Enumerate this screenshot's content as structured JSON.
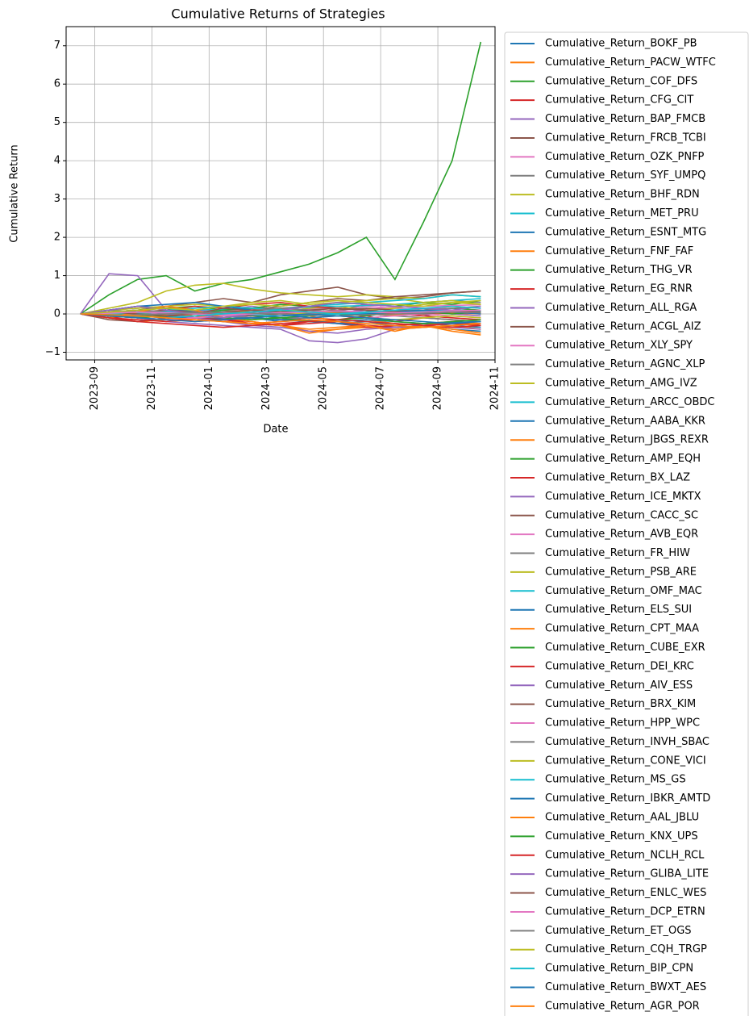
{
  "chart_data": {
    "type": "line",
    "title": "Cumulative Returns of Strategies",
    "x_label": "Date",
    "y_label": "Cumulative Return",
    "x": [
      "2023-08",
      "2023-09",
      "2023-10",
      "2023-11",
      "2023-12",
      "2024-01",
      "2024-02",
      "2024-03",
      "2024-04",
      "2024-05",
      "2024-06",
      "2024-07",
      "2024-08",
      "2024-09",
      "2024-10"
    ],
    "xlim": [
      "2023-08",
      "2024-11"
    ],
    "xticks": [
      "2023-09",
      "2023-11",
      "2024-01",
      "2024-03",
      "2024-05",
      "2024-07",
      "2024-09",
      "2024-11"
    ],
    "ylim": [
      -1.2,
      7.5
    ],
    "yticks": [
      {
        "value": -1,
        "label": "−1"
      },
      0,
      1,
      2,
      3,
      4,
      5,
      6,
      7
    ],
    "grid": true,
    "legend": "outside right",
    "series": [
      {
        "name": "Cumulative_Return_BOKF_PB",
        "color": "#1f77b4",
        "values": [
          0,
          -0.05,
          -0.1,
          -0.15,
          -0.1,
          -0.05,
          -0.1,
          -0.2,
          -0.15,
          -0.25,
          -0.2,
          -0.3,
          -0.25,
          -0.3,
          -0.35
        ]
      },
      {
        "name": "Cumulative_Return_PACW_WTFC",
        "color": "#ff7f0e",
        "values": [
          0,
          0.05,
          -0.1,
          -0.2,
          -0.15,
          -0.2,
          -0.25,
          -0.3,
          -0.45,
          -0.4,
          -0.35,
          -0.4,
          -0.3,
          -0.45,
          -0.55
        ]
      },
      {
        "name": "Cumulative_Return_COF_DFS",
        "color": "#2ca02c",
        "values": [
          0,
          0.5,
          0.9,
          1.0,
          0.6,
          0.8,
          0.9,
          1.1,
          1.3,
          1.6,
          2.0,
          0.9,
          2.4,
          4.0,
          7.1
        ]
      },
      {
        "name": "Cumulative_Return_CFG_CIT",
        "color": "#d62728",
        "values": [
          0,
          -0.1,
          -0.05,
          -0.1,
          -0.2,
          -0.15,
          -0.25,
          -0.2,
          -0.1,
          -0.15,
          -0.05,
          -0.2,
          -0.1,
          -0.15,
          -0.2
        ]
      },
      {
        "name": "Cumulative_Return_BAP_FMCB",
        "color": "#9467bd",
        "values": [
          0,
          1.05,
          1.0,
          0.1,
          0.05,
          0.1,
          0.2,
          0.1,
          0.0,
          0.05,
          0.1,
          0.0,
          -0.05,
          0.1,
          0.05
        ]
      },
      {
        "name": "Cumulative_Return_FRCB_TCBI",
        "color": "#8c564b",
        "values": [
          0,
          -0.1,
          0.1,
          0.2,
          0.3,
          0.4,
          0.3,
          0.5,
          0.6,
          0.7,
          0.5,
          0.4,
          0.45,
          0.55,
          0.6
        ]
      },
      {
        "name": "Cumulative_Return_OZK_PNFP",
        "color": "#e377c2",
        "values": [
          0,
          0.05,
          0.1,
          0.0,
          0.05,
          0.1,
          0.15,
          0.05,
          0.0,
          0.1,
          0.2,
          0.15,
          0.1,
          0.2,
          0.15
        ]
      },
      {
        "name": "Cumulative_Return_SYF_UMPQ",
        "color": "#7f7f7f",
        "values": [
          0,
          0.1,
          0.05,
          -0.05,
          0.0,
          0.1,
          0.05,
          0.15,
          0.2,
          0.1,
          0.25,
          0.2,
          0.3,
          0.35,
          0.3
        ]
      },
      {
        "name": "Cumulative_Return_BHF_RDN",
        "color": "#bcbd22",
        "values": [
          0,
          0.15,
          0.3,
          0.6,
          0.75,
          0.8,
          0.65,
          0.55,
          0.5,
          0.45,
          0.5,
          0.45,
          0.4,
          0.5,
          0.45
        ]
      },
      {
        "name": "Cumulative_Return_MET_PRU",
        "color": "#17becf",
        "values": [
          0,
          0.1,
          0.2,
          0.15,
          0.1,
          0.05,
          0.0,
          -0.05,
          0.05,
          0.1,
          0.0,
          0.1,
          0.15,
          0.05,
          0.1
        ]
      },
      {
        "name": "Cumulative_Return_ESNT_MTG",
        "color": "#1f77b4",
        "values": [
          0,
          0.05,
          0.0,
          -0.05,
          -0.1,
          0.0,
          0.05,
          0.1,
          0.0,
          -0.05,
          0.05,
          0.1,
          0.0,
          0.05,
          0.0
        ]
      },
      {
        "name": "Cumulative_Return_FNF_FAF",
        "color": "#ff7f0e",
        "values": [
          0,
          -0.05,
          -0.1,
          0.0,
          -0.05,
          -0.1,
          -0.15,
          -0.1,
          -0.05,
          -0.2,
          -0.15,
          -0.25,
          -0.3,
          -0.2,
          -0.25
        ]
      },
      {
        "name": "Cumulative_Return_THG_VR",
        "color": "#2ca02c",
        "values": [
          0,
          0.05,
          0.1,
          0.15,
          0.2,
          0.1,
          0.15,
          0.25,
          0.2,
          0.3,
          0.25,
          0.2,
          0.3,
          0.25,
          0.35
        ]
      },
      {
        "name": "Cumulative_Return_EG_RNR",
        "color": "#d62728",
        "values": [
          0,
          0.0,
          -0.1,
          -0.15,
          -0.1,
          -0.2,
          -0.25,
          -0.3,
          -0.2,
          -0.25,
          -0.35,
          -0.3,
          -0.25,
          -0.2,
          -0.3
        ]
      },
      {
        "name": "Cumulative_Return_ALL_RGA",
        "color": "#9467bd",
        "values": [
          0,
          -0.05,
          -0.1,
          -0.2,
          -0.25,
          -0.3,
          -0.35,
          -0.4,
          -0.7,
          -0.75,
          -0.65,
          -0.4,
          -0.35,
          -0.3,
          -0.25
        ]
      },
      {
        "name": "Cumulative_Return_ACGL_AIZ",
        "color": "#8c564b",
        "values": [
          0,
          -0.1,
          -0.2,
          -0.1,
          0.05,
          0.1,
          0.0,
          0.05,
          0.1,
          0.15,
          0.1,
          0.05,
          0.1,
          0.0,
          0.05
        ]
      },
      {
        "name": "Cumulative_Return_XLY_SPY",
        "color": "#e377c2",
        "values": [
          0,
          -0.02,
          -0.05,
          0.05,
          0.08,
          0.1,
          0.12,
          0.1,
          0.13,
          0.15,
          0.12,
          0.18,
          0.2,
          0.22,
          0.24
        ]
      },
      {
        "name": "Cumulative_Return_AGNC_XLP",
        "color": "#7f7f7f",
        "values": [
          0,
          -0.03,
          -0.08,
          0.0,
          0.02,
          0.0,
          -0.02,
          -0.05,
          0.0,
          0.03,
          0.05,
          0.08,
          0.1,
          0.07,
          0.05
        ]
      },
      {
        "name": "Cumulative_Return_AMG_IVZ",
        "color": "#bcbd22",
        "values": [
          0,
          0.05,
          0.0,
          -0.1,
          -0.05,
          0.0,
          0.1,
          0.05,
          0.15,
          0.2,
          0.1,
          0.15,
          0.25,
          0.3,
          0.35
        ]
      },
      {
        "name": "Cumulative_Return_ARCC_OBDC",
        "color": "#17becf",
        "values": [
          0,
          0.02,
          0.05,
          0.08,
          0.1,
          0.12,
          0.15,
          0.13,
          0.18,
          0.2,
          0.22,
          0.25,
          0.3,
          0.35,
          0.4
        ]
      },
      {
        "name": "Cumulative_Return_AABA_KKR",
        "color": "#1f77b4",
        "values": [
          0,
          0.1,
          0.2,
          0.15,
          0.05,
          -0.05,
          -0.1,
          -0.15,
          -0.2,
          -0.25,
          -0.3,
          -0.35,
          -0.3,
          -0.4,
          -0.45
        ]
      },
      {
        "name": "Cumulative_Return_JBGS_REXR",
        "color": "#ff7f0e",
        "values": [
          0,
          -0.1,
          -0.2,
          -0.15,
          -0.1,
          -0.2,
          -0.25,
          -0.3,
          -0.4,
          -0.35,
          -0.3,
          -0.4,
          -0.35,
          -0.3,
          -0.4
        ]
      },
      {
        "name": "Cumulative_Return_AMP_EQH",
        "color": "#2ca02c",
        "values": [
          0,
          0.05,
          0.1,
          0.05,
          0.0,
          0.1,
          0.15,
          0.1,
          0.05,
          0.0,
          -0.05,
          0.05,
          0.1,
          0.15,
          0.1
        ]
      },
      {
        "name": "Cumulative_Return_BX_LAZ",
        "color": "#d62728",
        "values": [
          0,
          -0.05,
          0.0,
          0.1,
          0.2,
          0.15,
          0.25,
          0.3,
          0.2,
          0.15,
          0.1,
          0.0,
          -0.05,
          -0.1,
          -0.15
        ]
      },
      {
        "name": "Cumulative_Return_ICE_MKTX",
        "color": "#9467bd",
        "values": [
          0,
          0.1,
          0.15,
          0.2,
          0.1,
          0.0,
          -0.1,
          -0.15,
          -0.05,
          0.0,
          0.05,
          0.1,
          0.05,
          0.0,
          -0.05
        ]
      },
      {
        "name": "Cumulative_Return_CACC_SC",
        "color": "#8c564b",
        "values": [
          0,
          -0.15,
          -0.2,
          -0.1,
          0.0,
          0.15,
          0.1,
          0.2,
          0.3,
          0.4,
          0.35,
          0.45,
          0.5,
          0.55,
          0.6
        ]
      },
      {
        "name": "Cumulative_Return_AVB_EQR",
        "color": "#e377c2",
        "values": [
          0,
          0.0,
          -0.02,
          0.0,
          0.03,
          0.02,
          0.0,
          0.01,
          0.03,
          0.05,
          0.04,
          0.06,
          0.05,
          0.07,
          0.06
        ]
      },
      {
        "name": "Cumulative_Return_FR_HIW",
        "color": "#7f7f7f",
        "values": [
          0,
          -0.05,
          -0.1,
          -0.05,
          0.0,
          -0.05,
          -0.1,
          -0.15,
          -0.1,
          -0.05,
          0.0,
          -0.05,
          -0.1,
          -0.15,
          -0.2
        ]
      },
      {
        "name": "Cumulative_Return_PSB_ARE",
        "color": "#bcbd22",
        "values": [
          0,
          0.1,
          0.15,
          0.2,
          0.25,
          0.2,
          0.3,
          0.35,
          0.25,
          0.3,
          0.35,
          0.4,
          0.3,
          0.35,
          0.25
        ]
      },
      {
        "name": "Cumulative_Return_OMF_MAC",
        "color": "#17becf",
        "values": [
          0,
          0.05,
          0.0,
          0.1,
          0.15,
          0.2,
          0.15,
          0.1,
          0.2,
          0.25,
          0.3,
          0.35,
          0.4,
          0.5,
          0.45
        ]
      },
      {
        "name": "Cumulative_Return_ELS_SUI",
        "color": "#1f77b4",
        "values": [
          0,
          -0.02,
          -0.05,
          -0.08,
          -0.1,
          -0.12,
          -0.1,
          -0.15,
          -0.18,
          -0.2,
          -0.15,
          -0.2,
          -0.25,
          -0.22,
          -0.2
        ]
      },
      {
        "name": "Cumulative_Return_CPT_MAA",
        "color": "#ff7f0e",
        "values": [
          0,
          0.02,
          0.0,
          -0.03,
          -0.05,
          -0.02,
          0.0,
          0.02,
          0.05,
          0.03,
          0.0,
          -0.02,
          0.0,
          0.02,
          0.0
        ]
      },
      {
        "name": "Cumulative_Return_CUBE_EXR",
        "color": "#2ca02c",
        "values": [
          0,
          0.0,
          -0.05,
          0.0,
          0.05,
          0.0,
          -0.05,
          -0.1,
          -0.05,
          0.0,
          0.05,
          0.1,
          0.05,
          0.0,
          0.05
        ]
      },
      {
        "name": "Cumulative_Return_DEI_KRC",
        "color": "#d62728",
        "values": [
          0,
          -0.1,
          -0.15,
          -0.2,
          -0.1,
          -0.15,
          -0.2,
          -0.3,
          -0.25,
          -0.2,
          -0.3,
          -0.35,
          -0.3,
          -0.25,
          -0.3
        ]
      },
      {
        "name": "Cumulative_Return_AIV_ESS",
        "color": "#9467bd",
        "values": [
          0,
          0.05,
          0.1,
          0.0,
          -0.1,
          -0.2,
          -0.3,
          -0.35,
          -0.45,
          -0.5,
          -0.4,
          -0.35,
          -0.3,
          -0.35,
          -0.4
        ]
      },
      {
        "name": "Cumulative_Return_BRX_KIM",
        "color": "#8c564b",
        "values": [
          0,
          0.0,
          0.05,
          0.1,
          0.05,
          0.0,
          -0.05,
          0.0,
          0.05,
          0.1,
          0.15,
          0.1,
          0.05,
          0.1,
          0.05
        ]
      },
      {
        "name": "Cumulative_Return_HPP_WPC",
        "color": "#e377c2",
        "values": [
          0,
          -0.05,
          -0.1,
          -0.15,
          -0.1,
          -0.05,
          0.0,
          0.05,
          0.0,
          -0.05,
          -0.1,
          -0.05,
          0.0,
          -0.05,
          -0.1
        ]
      },
      {
        "name": "Cumulative_Return_INVH_SBAC",
        "color": "#7f7f7f",
        "values": [
          0,
          0.05,
          0.1,
          0.05,
          0.0,
          0.05,
          0.1,
          0.15,
          0.1,
          0.05,
          0.0,
          0.05,
          0.1,
          0.15,
          0.2
        ]
      },
      {
        "name": "Cumulative_Return_CONE_VICI",
        "color": "#bcbd22",
        "values": [
          0,
          -0.05,
          -0.1,
          -0.05,
          0.0,
          0.05,
          0.1,
          0.05,
          0.0,
          -0.05,
          -0.1,
          -0.15,
          -0.1,
          -0.05,
          -0.1
        ]
      },
      {
        "name": "Cumulative_Return_MS_GS",
        "color": "#17becf",
        "values": [
          0,
          0.0,
          0.02,
          0.05,
          0.03,
          0.0,
          -0.02,
          -0.05,
          -0.03,
          0.0,
          0.02,
          0.05,
          0.08,
          0.1,
          0.08
        ]
      },
      {
        "name": "Cumulative_Return_IBKR_AMTD",
        "color": "#1f77b4",
        "values": [
          0,
          0.1,
          0.2,
          0.25,
          0.3,
          0.2,
          0.1,
          0.0,
          -0.1,
          -0.05,
          0.0,
          0.05,
          0.1,
          0.05,
          0.0
        ]
      },
      {
        "name": "Cumulative_Return_AAL_JBLU",
        "color": "#ff7f0e",
        "values": [
          0,
          -0.1,
          0.05,
          0.2,
          0.1,
          -0.1,
          -0.2,
          -0.3,
          -0.5,
          -0.4,
          -0.3,
          -0.45,
          -0.3,
          -0.4,
          -0.5
        ]
      },
      {
        "name": "Cumulative_Return_KNX_UPS",
        "color": "#2ca02c",
        "values": [
          0,
          -0.05,
          -0.1,
          -0.05,
          0.0,
          -0.1,
          -0.15,
          -0.1,
          -0.2,
          -0.15,
          -0.1,
          -0.2,
          -0.25,
          -0.2,
          -0.15
        ]
      },
      {
        "name": "Cumulative_Return_NCLH_RCL",
        "color": "#d62728",
        "values": [
          0,
          -0.1,
          -0.2,
          -0.25,
          -0.3,
          -0.35,
          -0.3,
          -0.25,
          -0.2,
          -0.15,
          -0.2,
          -0.25,
          -0.3,
          -0.35,
          -0.3
        ]
      },
      {
        "name": "Cumulative_Return_GLIBA_LITE",
        "color": "#9467bd",
        "values": [
          0,
          0.1,
          0.2,
          0.1,
          0.0,
          -0.1,
          0.0,
          0.1,
          0.2,
          0.3,
          0.25,
          0.2,
          0.15,
          0.1,
          0.2
        ]
      },
      {
        "name": "Cumulative_Return_ENLC_WES",
        "color": "#8c564b",
        "values": [
          0,
          0.05,
          0.0,
          -0.05,
          0.0,
          0.05,
          0.1,
          0.05,
          0.1,
          0.15,
          0.1,
          0.05,
          0.0,
          0.05,
          0.1
        ]
      },
      {
        "name": "Cumulative_Return_DCP_ETRN",
        "color": "#e377c2",
        "values": [
          0,
          0.02,
          0.05,
          0.03,
          0.0,
          -0.02,
          0.0,
          0.03,
          0.05,
          0.08,
          0.05,
          0.03,
          0.05,
          0.08,
          0.1
        ]
      },
      {
        "name": "Cumulative_Return_ET_OGS",
        "color": "#7f7f7f",
        "values": [
          0,
          -0.05,
          -0.02,
          0.0,
          0.03,
          0.05,
          0.02,
          0.0,
          -0.03,
          -0.05,
          -0.02,
          0.0,
          0.02,
          0.05,
          0.03
        ]
      },
      {
        "name": "Cumulative_Return_CQH_TRGP",
        "color": "#bcbd22",
        "values": [
          0,
          0.05,
          0.1,
          0.15,
          0.1,
          0.2,
          0.25,
          0.2,
          0.3,
          0.35,
          0.3,
          0.25,
          0.2,
          0.3,
          0.25
        ]
      },
      {
        "name": "Cumulative_Return_BIP_CPN",
        "color": "#17becf",
        "values": [
          0,
          -0.02,
          -0.05,
          -0.1,
          -0.05,
          0.0,
          0.05,
          0.1,
          0.05,
          0.0,
          0.05,
          0.1,
          0.15,
          0.2,
          0.15
        ]
      },
      {
        "name": "Cumulative_Return_BWXT_AES",
        "color": "#1f77b4",
        "values": [
          0,
          -0.05,
          -0.1,
          -0.15,
          -0.2,
          -0.15,
          -0.1,
          -0.05,
          0.0,
          -0.05,
          -0.1,
          -0.15,
          -0.2,
          -0.25,
          -0.2
        ]
      },
      {
        "name": "Cumulative_Return_AGR_POR",
        "color": "#ff7f0e",
        "values": [
          0,
          -0.02,
          -0.05,
          -0.1,
          -0.15,
          -0.2,
          -0.25,
          -0.2,
          -0.15,
          -0.2,
          -0.25,
          -0.3,
          -0.35,
          -0.3,
          -0.25
        ]
      }
    ]
  }
}
